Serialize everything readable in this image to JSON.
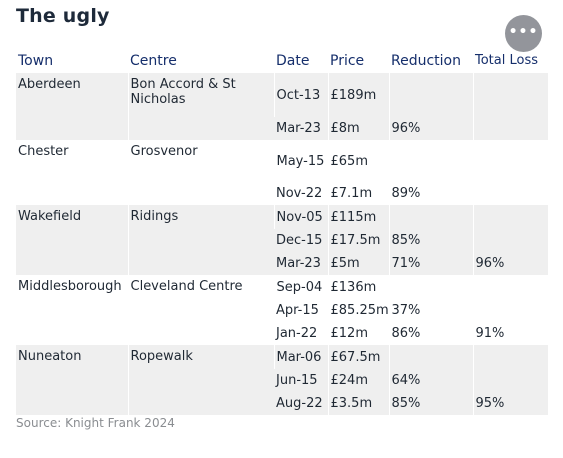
{
  "title": "The ugly",
  "headers": {
    "town": "Town",
    "centre": "Centre",
    "date": "Date",
    "price": "Price",
    "reduction": "Reduction",
    "total_loss": "Total Loss"
  },
  "groups": [
    {
      "town": "Aberdeen",
      "centre": "Bon Accord & St Nicholas",
      "rows": [
        {
          "date": "Oct-13",
          "price": "£189m",
          "reduction": "",
          "total_loss": ""
        },
        {
          "date": "Mar-23",
          "price": "£8m",
          "reduction": "96%",
          "total_loss": ""
        }
      ]
    },
    {
      "town": "Chester",
      "centre": "Grosvenor",
      "rows": [
        {
          "date": "May-15",
          "price": "£65m",
          "reduction": "",
          "total_loss": ""
        },
        {
          "date": "Nov-22",
          "price": "£7.1m",
          "reduction": "89%",
          "total_loss": ""
        }
      ]
    },
    {
      "town": "Wakefield",
      "centre": "Ridings",
      "rows": [
        {
          "date": "Nov-05",
          "price": "£115m",
          "reduction": "",
          "total_loss": ""
        },
        {
          "date": "Dec-15",
          "price": "£17.5m",
          "reduction": "85%",
          "total_loss": ""
        },
        {
          "date": "Mar-23",
          "price": "£5m",
          "reduction": "71%",
          "total_loss": "96%"
        }
      ]
    },
    {
      "town": "Middlesborough",
      "centre": "Cleveland Centre",
      "rows": [
        {
          "date": "Sep-04",
          "price": "£136m",
          "reduction": "",
          "total_loss": ""
        },
        {
          "date": "Apr-15",
          "price": "£85.25m",
          "reduction": "37%",
          "total_loss": ""
        },
        {
          "date": "Jan-22",
          "price": "£12m",
          "reduction": "86%",
          "total_loss": "91%"
        }
      ]
    },
    {
      "town": "Nuneaton",
      "centre": "Ropewalk",
      "rows": [
        {
          "date": "Mar-06",
          "price": "£67.5m",
          "reduction": "",
          "total_loss": ""
        },
        {
          "date": "Jun-15",
          "price": "£24m",
          "reduction": "64%",
          "total_loss": ""
        },
        {
          "date": "Aug-22",
          "price": "£3.5m",
          "reduction": "85%",
          "total_loss": "95%"
        }
      ]
    }
  ],
  "source": "Source: Knight Frank 2024",
  "more_button": {
    "icon": "ellipsis-icon",
    "glyph": "•••"
  }
}
